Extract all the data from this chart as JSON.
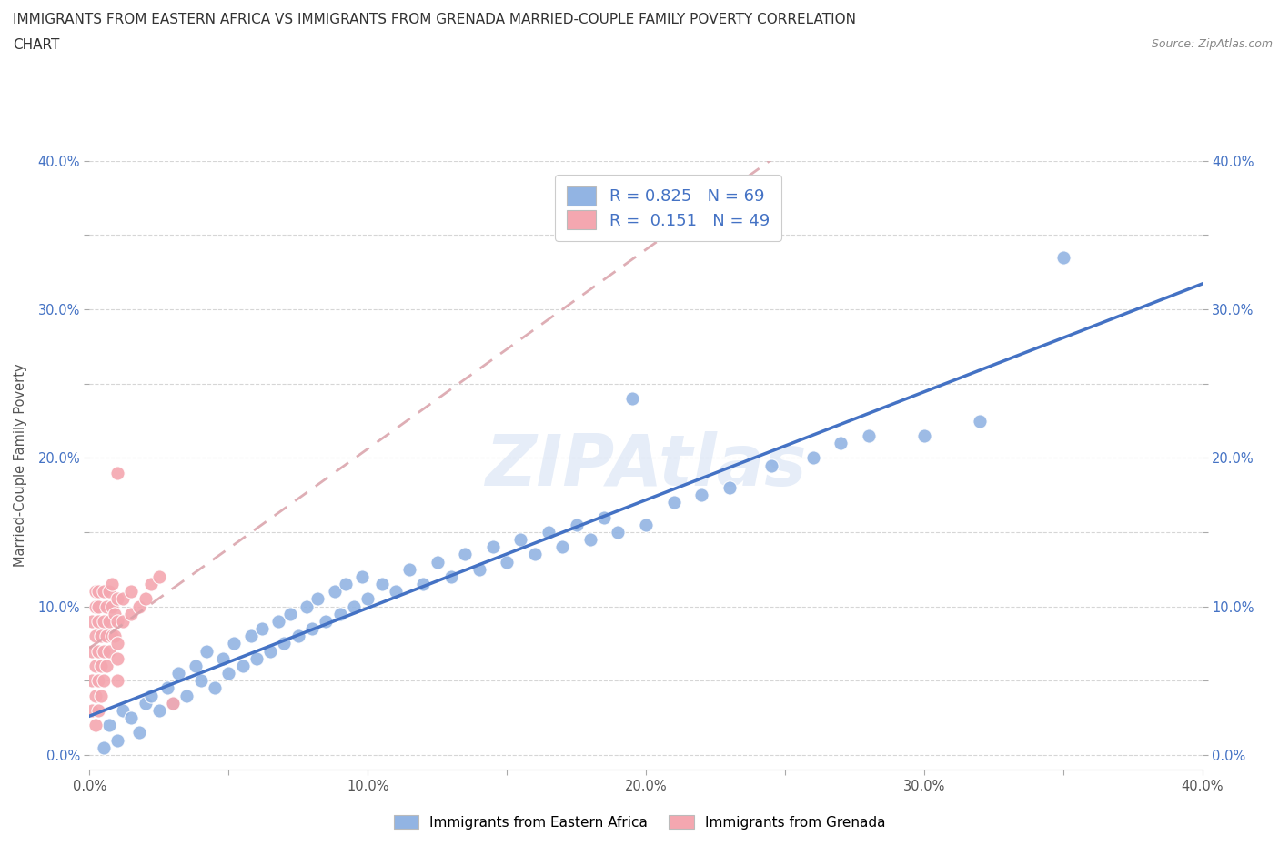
{
  "title_line1": "IMMIGRANTS FROM EASTERN AFRICA VS IMMIGRANTS FROM GRENADA MARRIED-COUPLE FAMILY POVERTY CORRELATION",
  "title_line2": "CHART",
  "source": "Source: ZipAtlas.com",
  "ylabel": "Married-Couple Family Poverty",
  "xlim": [
    0.0,
    0.4
  ],
  "ylim": [
    -0.01,
    0.4
  ],
  "xtick_labels": [
    "0.0%",
    "",
    "10.0%",
    "",
    "20.0%",
    "",
    "30.0%",
    "",
    "40.0%"
  ],
  "ytick_labels": [
    "0.0%",
    "",
    "10.0%",
    "",
    "20.0%",
    "",
    "30.0%",
    "",
    "40.0%"
  ],
  "xtick_values": [
    0.0,
    0.05,
    0.1,
    0.15,
    0.2,
    0.25,
    0.3,
    0.35,
    0.4
  ],
  "ytick_values": [
    0.0,
    0.05,
    0.1,
    0.15,
    0.2,
    0.25,
    0.3,
    0.35,
    0.4
  ],
  "R_blue": 0.825,
  "N_blue": 69,
  "R_pink": 0.151,
  "N_pink": 49,
  "blue_color": "#92b4e3",
  "pink_color": "#f4a7b0",
  "line_blue": "#4472c4",
  "line_pink": "#d9a0a8",
  "legend_label_blue": "Immigrants from Eastern Africa",
  "legend_label_pink": "Immigrants from Grenada",
  "blue_scatter_x": [
    0.005,
    0.007,
    0.01,
    0.012,
    0.015,
    0.018,
    0.02,
    0.022,
    0.025,
    0.028,
    0.03,
    0.032,
    0.035,
    0.038,
    0.04,
    0.042,
    0.045,
    0.048,
    0.05,
    0.052,
    0.055,
    0.058,
    0.06,
    0.062,
    0.065,
    0.068,
    0.07,
    0.072,
    0.075,
    0.078,
    0.08,
    0.082,
    0.085,
    0.088,
    0.09,
    0.092,
    0.095,
    0.098,
    0.1,
    0.105,
    0.11,
    0.115,
    0.12,
    0.125,
    0.13,
    0.135,
    0.14,
    0.145,
    0.15,
    0.155,
    0.16,
    0.165,
    0.17,
    0.175,
    0.18,
    0.185,
    0.19,
    0.195,
    0.2,
    0.21,
    0.22,
    0.23,
    0.245,
    0.26,
    0.27,
    0.28,
    0.3,
    0.32,
    0.35
  ],
  "blue_scatter_y": [
    0.005,
    0.02,
    0.01,
    0.03,
    0.025,
    0.015,
    0.035,
    0.04,
    0.03,
    0.045,
    0.035,
    0.055,
    0.04,
    0.06,
    0.05,
    0.07,
    0.045,
    0.065,
    0.055,
    0.075,
    0.06,
    0.08,
    0.065,
    0.085,
    0.07,
    0.09,
    0.075,
    0.095,
    0.08,
    0.1,
    0.085,
    0.105,
    0.09,
    0.11,
    0.095,
    0.115,
    0.1,
    0.12,
    0.105,
    0.115,
    0.11,
    0.125,
    0.115,
    0.13,
    0.12,
    0.135,
    0.125,
    0.14,
    0.13,
    0.145,
    0.135,
    0.15,
    0.14,
    0.155,
    0.145,
    0.16,
    0.15,
    0.24,
    0.155,
    0.17,
    0.175,
    0.18,
    0.195,
    0.2,
    0.21,
    0.215,
    0.215,
    0.225,
    0.335
  ],
  "pink_scatter_x": [
    0.001,
    0.001,
    0.001,
    0.001,
    0.002,
    0.002,
    0.002,
    0.002,
    0.002,
    0.002,
    0.003,
    0.003,
    0.003,
    0.003,
    0.003,
    0.003,
    0.004,
    0.004,
    0.004,
    0.005,
    0.005,
    0.005,
    0.005,
    0.006,
    0.006,
    0.006,
    0.007,
    0.007,
    0.007,
    0.008,
    0.008,
    0.008,
    0.009,
    0.009,
    0.01,
    0.01,
    0.01,
    0.01,
    0.01,
    0.01,
    0.012,
    0.012,
    0.015,
    0.015,
    0.018,
    0.02,
    0.022,
    0.025,
    0.03
  ],
  "pink_scatter_y": [
    0.03,
    0.05,
    0.07,
    0.09,
    0.02,
    0.04,
    0.06,
    0.08,
    0.1,
    0.11,
    0.03,
    0.05,
    0.07,
    0.09,
    0.1,
    0.11,
    0.04,
    0.06,
    0.08,
    0.05,
    0.07,
    0.09,
    0.11,
    0.06,
    0.08,
    0.1,
    0.07,
    0.09,
    0.11,
    0.08,
    0.1,
    0.115,
    0.08,
    0.095,
    0.05,
    0.065,
    0.075,
    0.09,
    0.105,
    0.19,
    0.09,
    0.105,
    0.095,
    0.11,
    0.1,
    0.105,
    0.115,
    0.12,
    0.035
  ]
}
